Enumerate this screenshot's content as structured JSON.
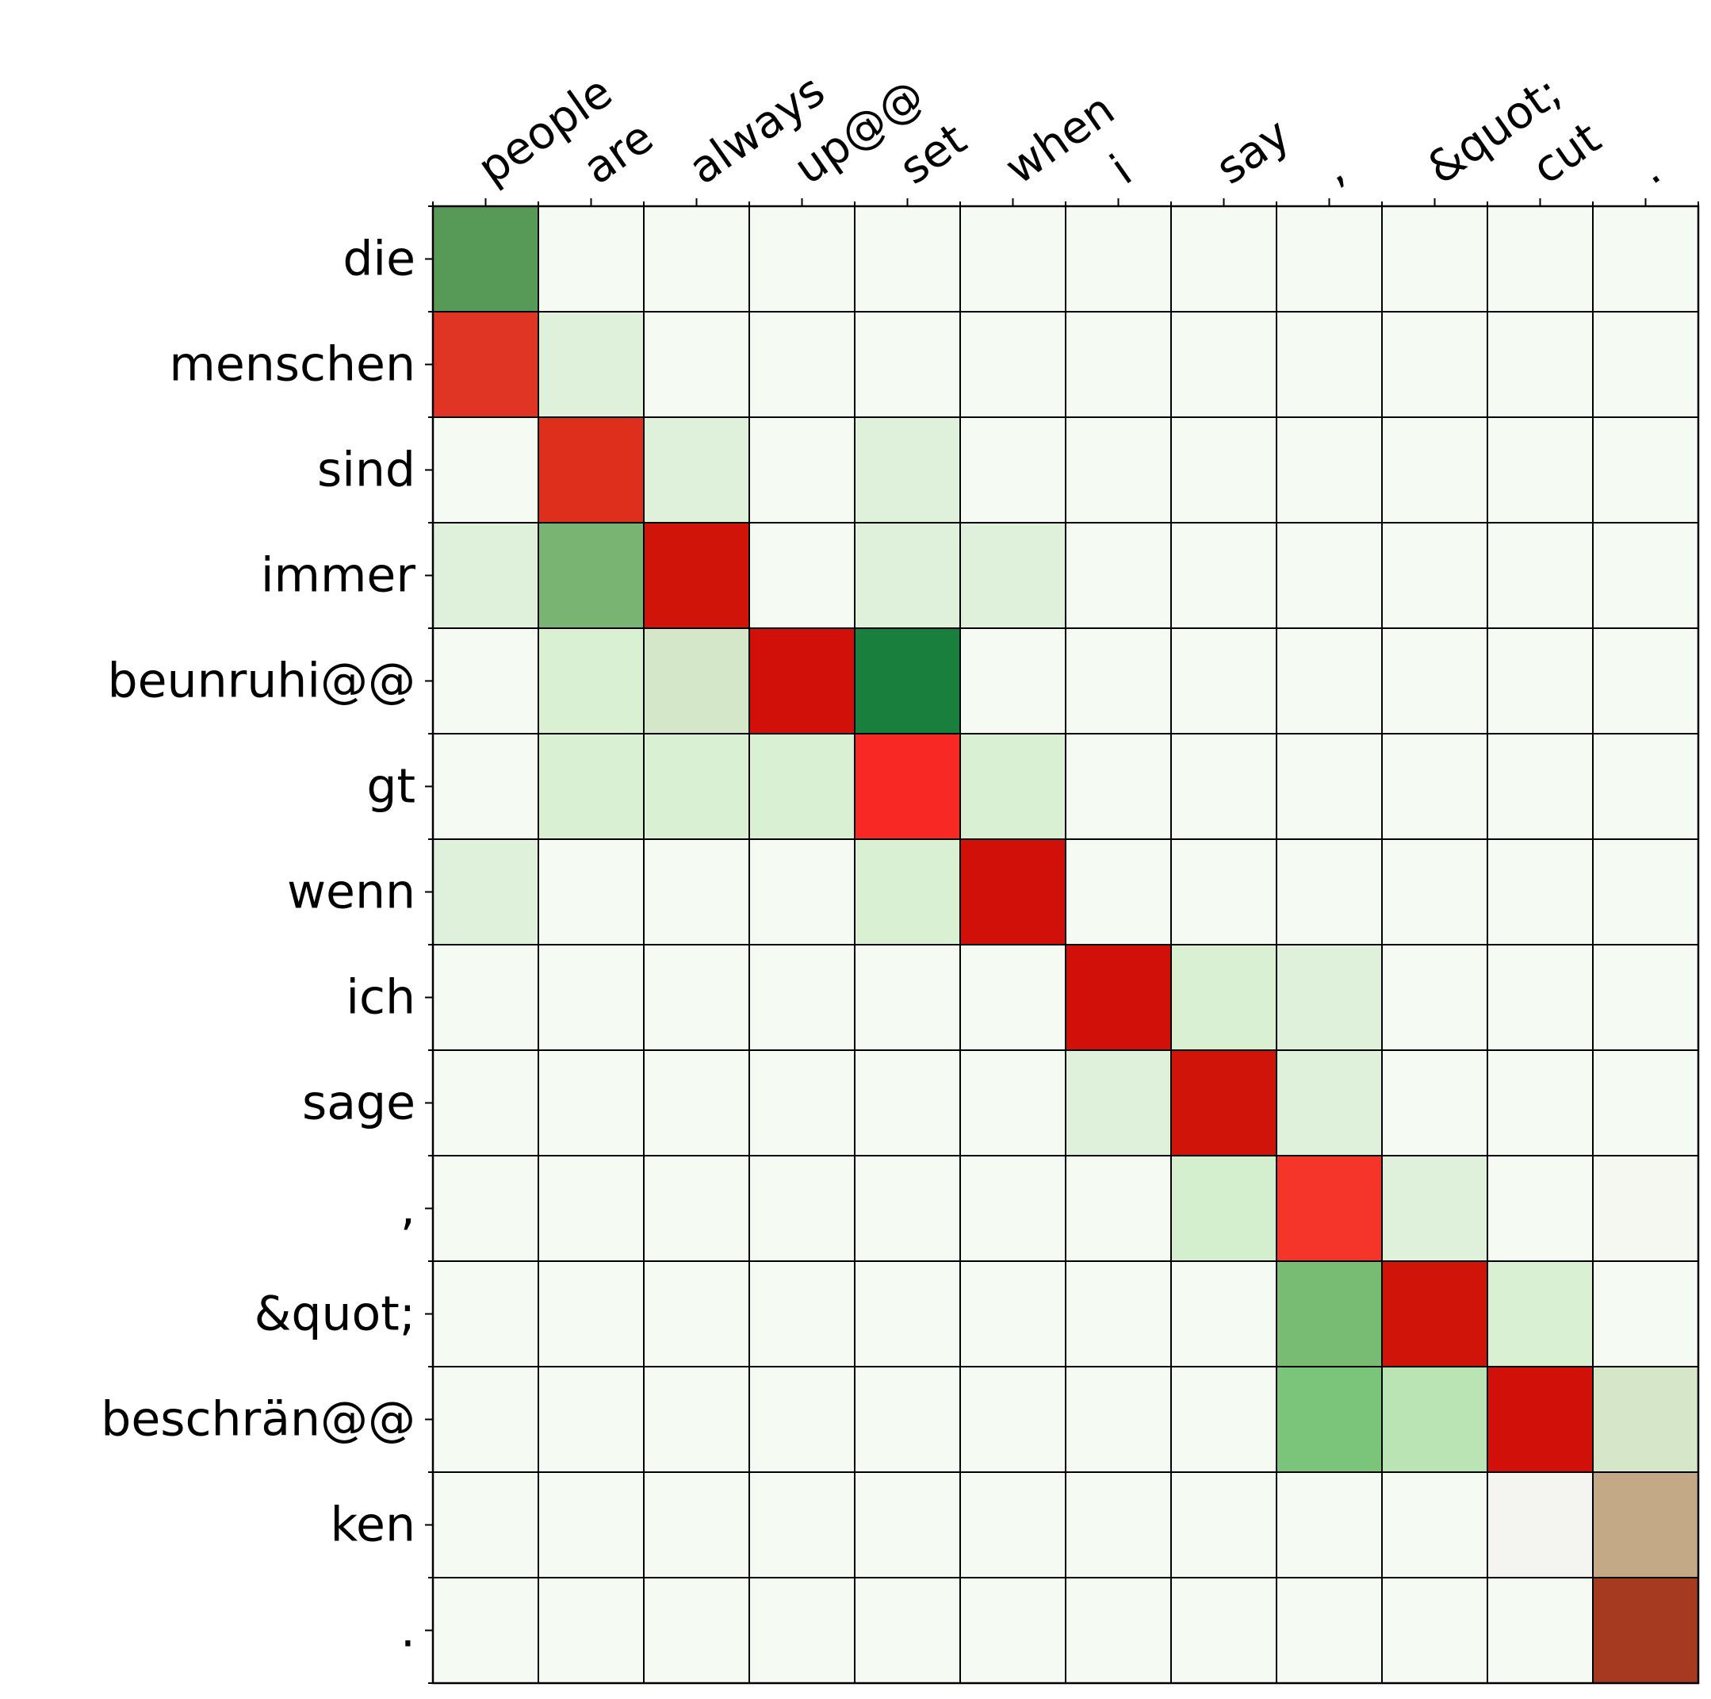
{
  "chart_data": {
    "type": "heatmap",
    "title": "",
    "xlabel": "",
    "ylabel": "",
    "grid": true,
    "x_tick_position": "top",
    "source_tokens": [
      "people",
      "are",
      "always",
      "up@@",
      "set",
      "when",
      "i",
      "say",
      ",",
      "&quot;",
      "cut",
      "."
    ],
    "target_tokens": [
      "die",
      "menschen",
      "sind",
      "immer",
      "beunruhi@@",
      "gt",
      "wenn",
      "ich",
      "sage",
      ",",
      "&quot;",
      "beschrän@@",
      "ken",
      "."
    ],
    "cell_colors": [
      [
        "#579a57",
        "#f5faf3",
        "#f5faf3",
        "#f5faf3",
        "#f5faf3",
        "#f5faf3",
        "#f5faf3",
        "#f5faf3",
        "#f5faf3",
        "#f5faf3",
        "#f5faf3",
        "#f5faf3"
      ],
      [
        "#e03525",
        "#dff1da",
        "#f5faf3",
        "#f5faf3",
        "#f5faf3",
        "#f5faf3",
        "#f5faf3",
        "#f5faf3",
        "#f5faf3",
        "#f5faf3",
        "#f5faf3",
        "#f5faf3"
      ],
      [
        "#f5faf3",
        "#de2e1c",
        "#dff1da",
        "#f5faf3",
        "#dff1da",
        "#f5faf3",
        "#f5faf3",
        "#f5faf3",
        "#f5faf3",
        "#f5faf3",
        "#f5faf3",
        "#f5faf3"
      ],
      [
        "#dff1da",
        "#7ab472",
        "#d1140a",
        "#f5faf3",
        "#dff1da",
        "#dff1da",
        "#f5faf3",
        "#f5faf3",
        "#f5faf3",
        "#f5faf3",
        "#f5faf3",
        "#f5faf3"
      ],
      [
        "#f5faf3",
        "#d9f0d3",
        "#d4e8c9",
        "#d1100a",
        "#18803c",
        "#f5faf3",
        "#f5faf3",
        "#f5faf3",
        "#f5faf3",
        "#f5faf3",
        "#f5faf3",
        "#f5faf3"
      ],
      [
        "#f5faf3",
        "#d9f0d3",
        "#d9f0d3",
        "#d9f0d3",
        "#f82925",
        "#d9f0d3",
        "#f5faf3",
        "#f5faf3",
        "#f5faf3",
        "#f5faf3",
        "#f5faf3",
        "#f5faf3"
      ],
      [
        "#dff1da",
        "#f5faf3",
        "#f5faf3",
        "#f5faf3",
        "#d9f0d3",
        "#d1100a",
        "#f5faf3",
        "#f5faf3",
        "#f5faf3",
        "#f5faf3",
        "#f5faf3",
        "#f5faf3"
      ],
      [
        "#f5faf3",
        "#f5faf3",
        "#f5faf3",
        "#f5faf3",
        "#f5faf3",
        "#f5faf3",
        "#d1100a",
        "#d9f0d3",
        "#dff1da",
        "#f5faf3",
        "#f5faf3",
        "#f5faf3"
      ],
      [
        "#f5faf3",
        "#f5faf3",
        "#f5faf3",
        "#f5faf3",
        "#f5faf3",
        "#f5faf3",
        "#dff1da",
        "#d1140a",
        "#dff1da",
        "#f5faf3",
        "#f5faf3",
        "#f5faf3"
      ],
      [
        "#f5faf3",
        "#f5faf3",
        "#f5faf3",
        "#f5faf3",
        "#f5faf3",
        "#f5faf3",
        "#f5faf3",
        "#d4efce",
        "#f5342a",
        "#dff1da",
        "#f5faf3",
        "#f5f7f1"
      ],
      [
        "#f5faf3",
        "#f5faf3",
        "#f5faf3",
        "#f5faf3",
        "#f5faf3",
        "#f5faf3",
        "#f5faf3",
        "#f5faf3",
        "#78bc74",
        "#d1140a",
        "#d9f0d3",
        "#f5faf3"
      ],
      [
        "#f5faf3",
        "#f5faf3",
        "#f5faf3",
        "#f5faf3",
        "#f5faf3",
        "#f5faf3",
        "#f5faf3",
        "#f5faf3",
        "#7ac57a",
        "#bae4b3",
        "#d1100a",
        "#d6e6c9"
      ],
      [
        "#f5faf3",
        "#f5faf3",
        "#f5faf3",
        "#f5faf3",
        "#f5faf3",
        "#f5faf3",
        "#f5faf3",
        "#f5faf3",
        "#f5faf3",
        "#f5faf3",
        "#f4f5f0",
        "#c4a987"
      ],
      [
        "#f5faf3",
        "#f5faf3",
        "#f5faf3",
        "#f5faf3",
        "#f5faf3",
        "#f5faf3",
        "#f5faf3",
        "#f5faf3",
        "#f5faf3",
        "#f5faf3",
        "#f5faf3",
        "#a63a20"
      ]
    ]
  }
}
